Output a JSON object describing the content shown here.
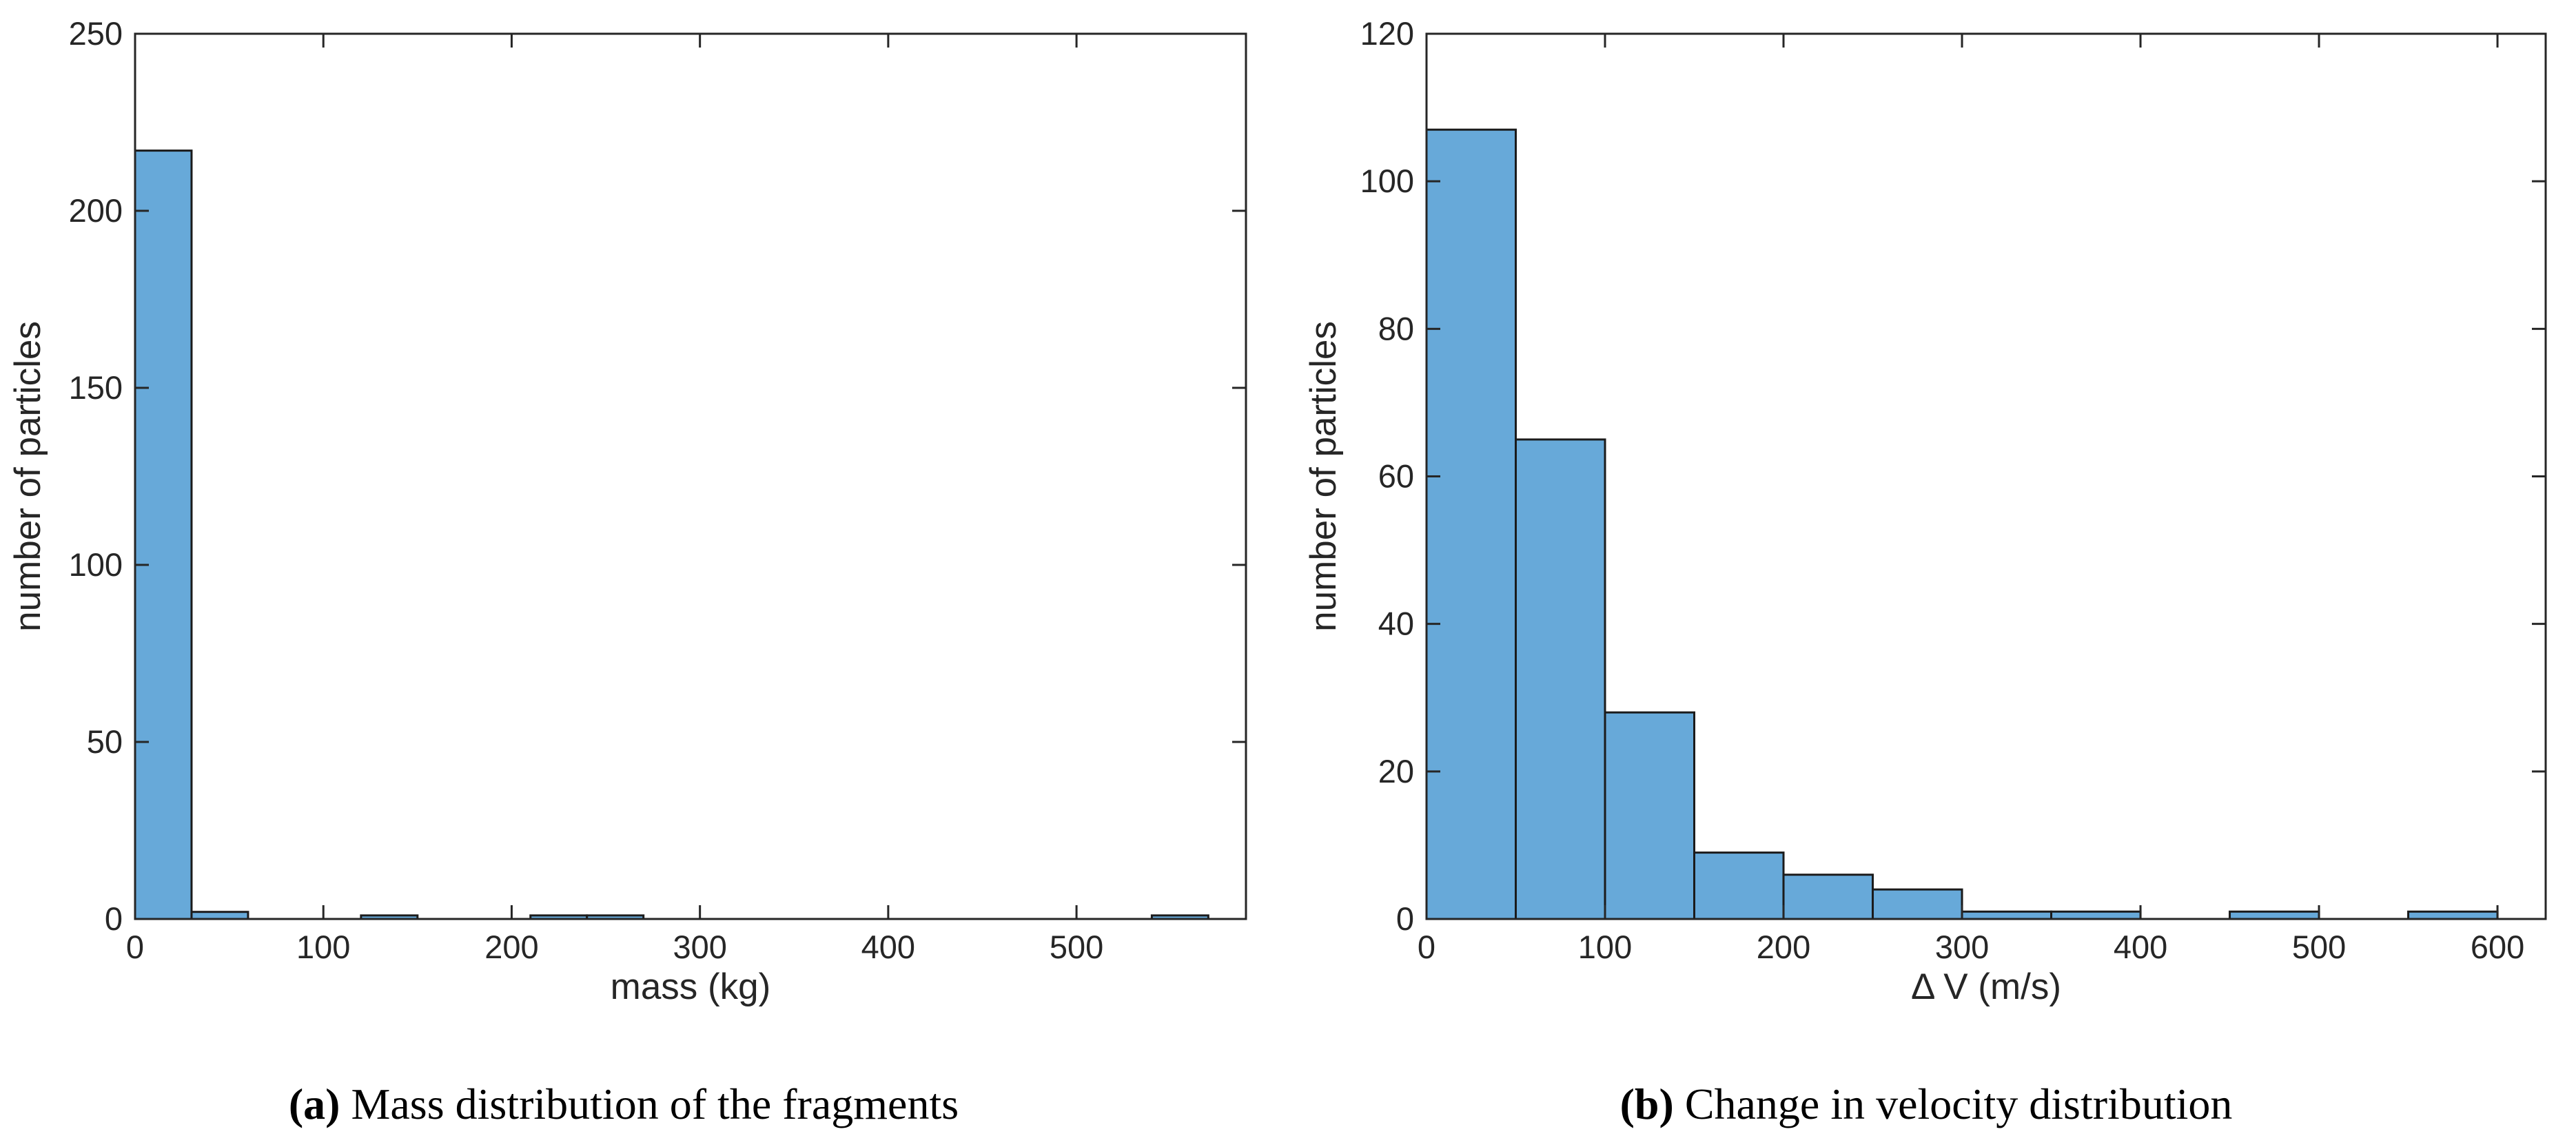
{
  "figure": {
    "background": "#ffffff",
    "axis_color": "#262626",
    "text_color": "#262626",
    "caption_color": "#000000",
    "bar_fill": "#67a9d9",
    "bar_edge": "#1b1b1b"
  },
  "chart_data": [
    {
      "type": "bar",
      "subtype": "histogram",
      "caption_label": "(a)",
      "caption_text": "Mass distribution of the fragments",
      "xlabel": "mass (kg)",
      "ylabel": "number of particles",
      "xlim": [
        0,
        590
      ],
      "ylim": [
        0,
        250
      ],
      "xticks": [
        0,
        100,
        200,
        300,
        400,
        500
      ],
      "yticks": [
        0,
        50,
        100,
        150,
        200,
        250
      ],
      "grid": false,
      "bin_width": 30,
      "bins": [
        {
          "start": 0,
          "end": 30,
          "count": 217
        },
        {
          "start": 30,
          "end": 60,
          "count": 2
        },
        {
          "start": 120,
          "end": 150,
          "count": 1
        },
        {
          "start": 210,
          "end": 240,
          "count": 1
        },
        {
          "start": 240,
          "end": 270,
          "count": 1
        },
        {
          "start": 540,
          "end": 570,
          "count": 1
        }
      ]
    },
    {
      "type": "bar",
      "subtype": "histogram",
      "caption_label": "(b)",
      "caption_text": "Change in velocity distribution",
      "xlabel": "Δ V (m/s)",
      "ylabel": "number of particles",
      "xlim": [
        0,
        627
      ],
      "ylim": [
        0,
        120
      ],
      "xticks": [
        0,
        100,
        200,
        300,
        400,
        500,
        600
      ],
      "yticks": [
        0,
        20,
        40,
        60,
        80,
        100,
        120
      ],
      "grid": false,
      "bin_width": 50,
      "bins": [
        {
          "start": 0,
          "end": 50,
          "count": 107
        },
        {
          "start": 50,
          "end": 100,
          "count": 65
        },
        {
          "start": 100,
          "end": 150,
          "count": 28
        },
        {
          "start": 150,
          "end": 200,
          "count": 9
        },
        {
          "start": 200,
          "end": 250,
          "count": 6
        },
        {
          "start": 250,
          "end": 300,
          "count": 4
        },
        {
          "start": 300,
          "end": 350,
          "count": 1
        },
        {
          "start": 350,
          "end": 400,
          "count": 1
        },
        {
          "start": 450,
          "end": 500,
          "count": 1
        },
        {
          "start": 550,
          "end": 600,
          "count": 1
        }
      ]
    }
  ]
}
